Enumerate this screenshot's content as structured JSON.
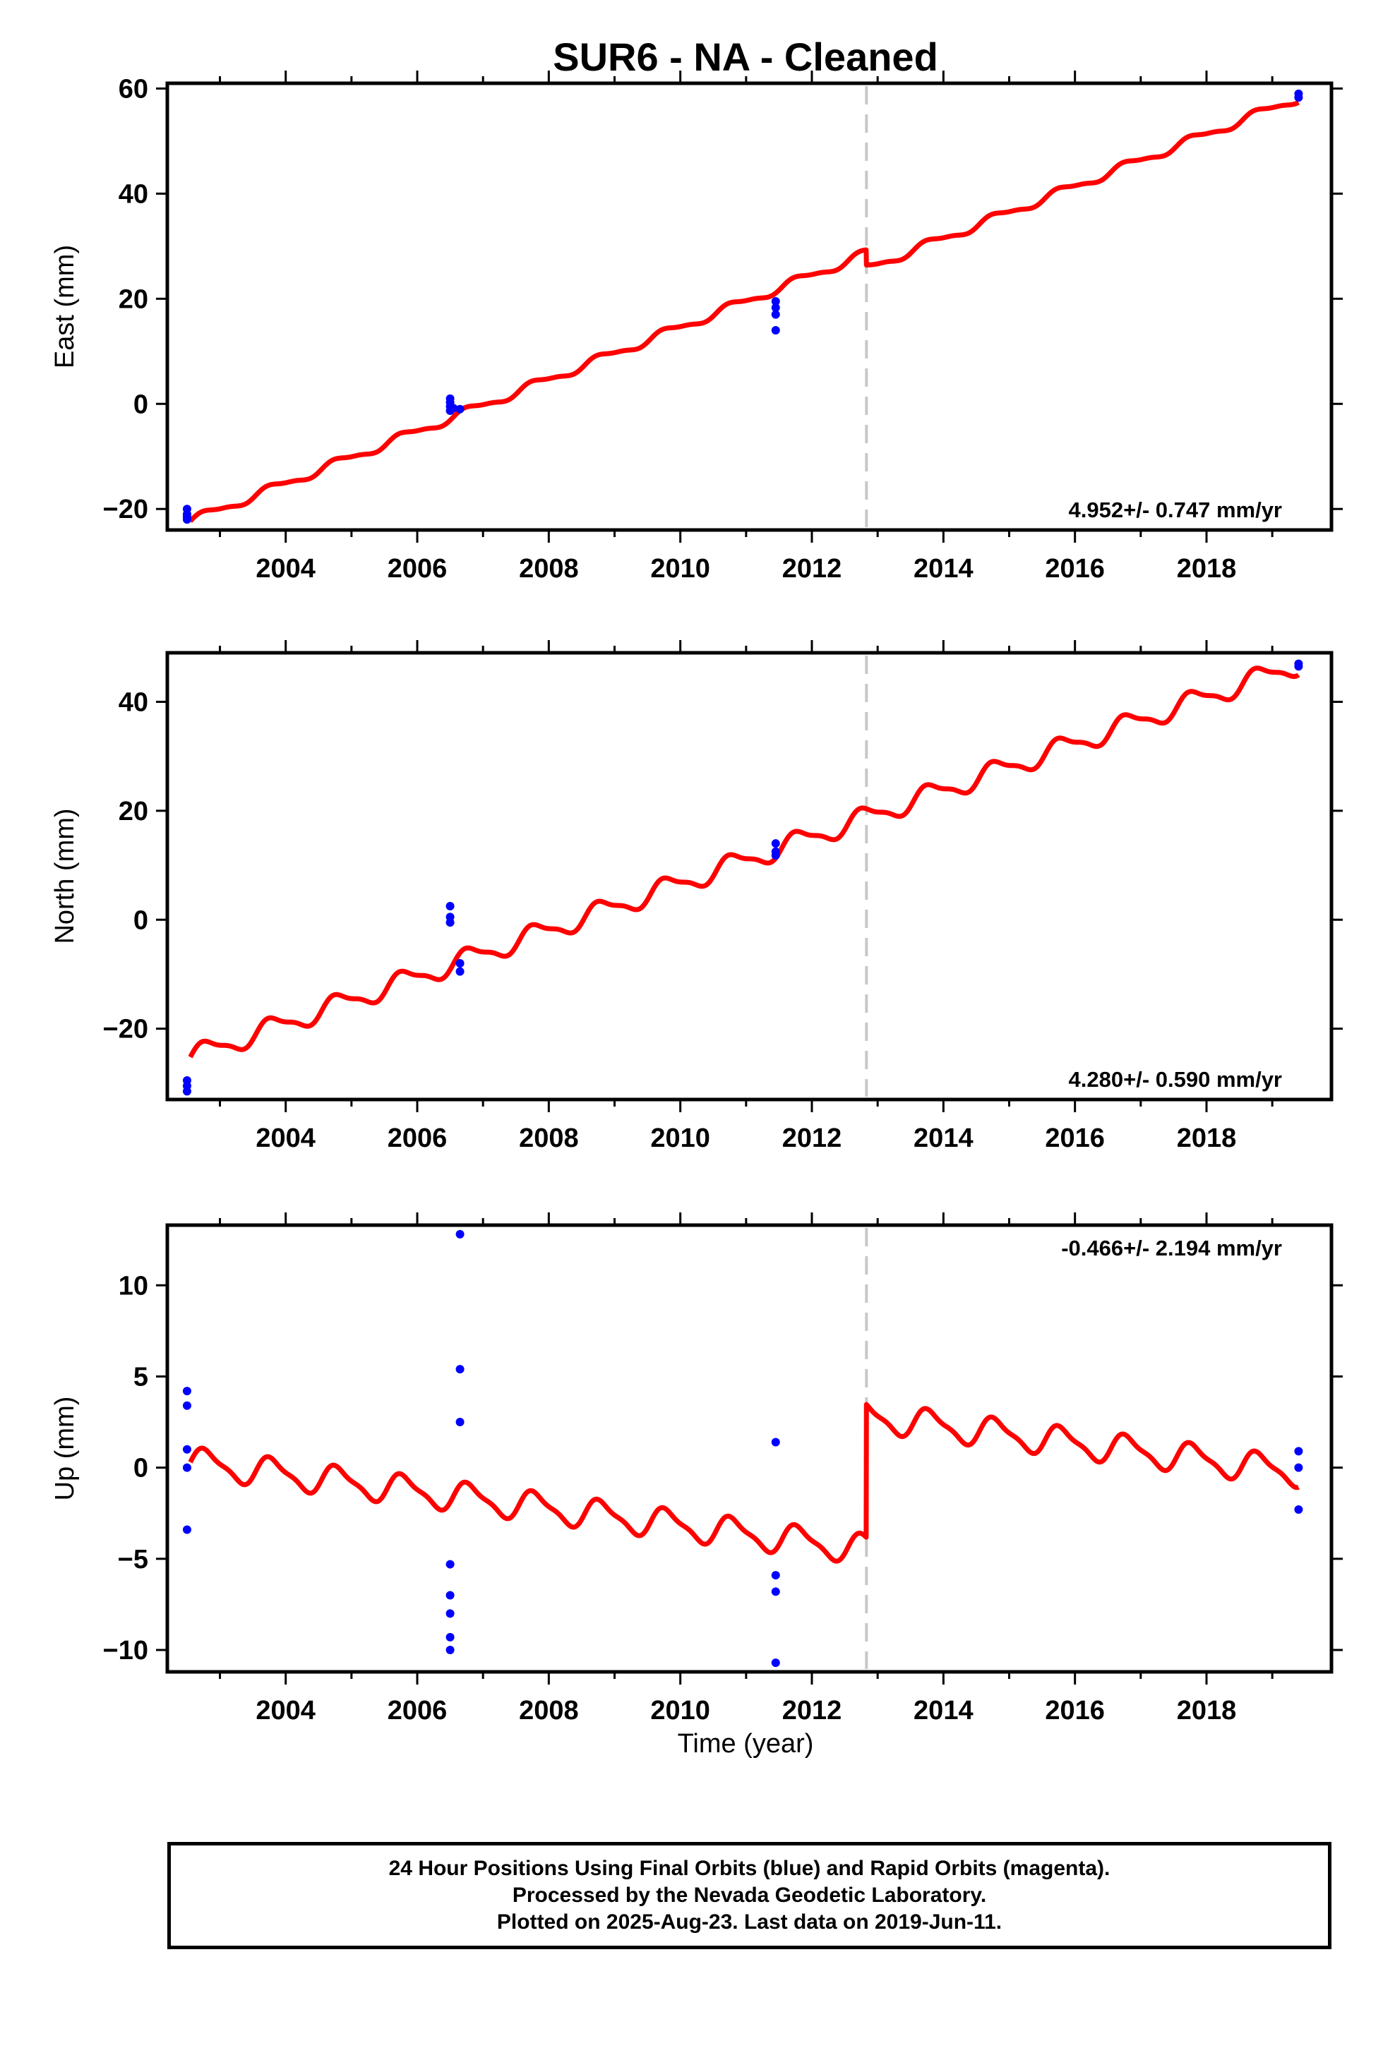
{
  "title": "SUR6  - NA - Cleaned",
  "colors": {
    "model_line": "#ff0000",
    "final_orbits": "#0000ff",
    "offset_marker": "#c8c8c8",
    "frame": "#000000"
  },
  "x_axis": {
    "label": "Time (year)",
    "range": [
      2002.2,
      2019.9
    ],
    "ticks": [
      "2004",
      "2006",
      "2008",
      "2010",
      "2012",
      "2014",
      "2016",
      "2018"
    ]
  },
  "offset_epoch": 2012.83,
  "chart_data": [
    {
      "type": "scatter",
      "component": "east",
      "ylabel": "East (mm)",
      "ylim": [
        -24,
        61
      ],
      "yticks": [
        "−20",
        "0",
        "20",
        "40",
        "60"
      ],
      "ytick_values": [
        -20,
        0,
        20,
        40,
        60
      ],
      "rate_label": "4.952+/- 0.747 mm/yr",
      "rate_position": "bottom-right",
      "model": {
        "start": 2002.55,
        "end": 2019.4,
        "intercept": -22.3,
        "slope": 4.952,
        "reference_year": 2002.55,
        "seasonal_amplitude": 0.8,
        "offset_step": -2.9
      },
      "points": [
        [
          2002.5,
          -20.0
        ],
        [
          2002.5,
          -21.0
        ],
        [
          2002.5,
          -22.0
        ],
        [
          2002.5,
          -21.5
        ],
        [
          2006.5,
          1.0
        ],
        [
          2006.5,
          0.3
        ],
        [
          2006.5,
          -0.5
        ],
        [
          2006.5,
          -1.3
        ],
        [
          2006.55,
          -0.8
        ],
        [
          2006.65,
          -1.0
        ],
        [
          2011.45,
          19.5
        ],
        [
          2011.45,
          18.3
        ],
        [
          2011.45,
          17.0
        ],
        [
          2011.45,
          14.0
        ],
        [
          2019.4,
          59.0
        ],
        [
          2019.4,
          58.3
        ]
      ]
    },
    {
      "type": "scatter",
      "component": "north",
      "ylabel": "North (mm)",
      "ylim": [
        -33,
        49
      ],
      "yticks": [
        "−20",
        "0",
        "20",
        "40"
      ],
      "ytick_values": [
        -20,
        0,
        20,
        40
      ],
      "rate_label": "4.280+/- 0.590 mm/yr",
      "rate_position": "bottom-right",
      "model": {
        "start": 2002.55,
        "end": 2019.4,
        "intercept": -25.2,
        "slope": 4.28,
        "reference_year": 2002.55,
        "seasonal_amplitude": 1.8,
        "offset_step": 0.0
      },
      "points": [
        [
          2002.5,
          -29.5
        ],
        [
          2002.5,
          -30.5
        ],
        [
          2002.5,
          -31.5
        ],
        [
          2006.5,
          2.5
        ],
        [
          2006.5,
          0.5
        ],
        [
          2006.5,
          -0.5
        ],
        [
          2006.65,
          -9.5
        ],
        [
          2006.65,
          -8.0
        ],
        [
          2011.45,
          14.0
        ],
        [
          2011.45,
          12.5
        ],
        [
          2011.45,
          11.8
        ],
        [
          2019.4,
          47.0
        ],
        [
          2019.4,
          46.5
        ]
      ]
    },
    {
      "type": "scatter",
      "component": "up",
      "ylabel": "Up (mm)",
      "ylim": [
        -11.2,
        13.3
      ],
      "yticks": [
        "−10",
        "−5",
        "0",
        "5",
        "10"
      ],
      "ytick_values": [
        -10,
        -5,
        0,
        5,
        10
      ],
      "rate_label": "-0.466+/- 2.194 mm/yr",
      "rate_position": "top-right",
      "model": {
        "start": 2002.55,
        "end": 2019.4,
        "intercept": 0.3,
        "slope": -0.466,
        "reference_year": 2002.55,
        "seasonal_amplitude": 0.75,
        "offset_step": 7.3
      },
      "points": [
        [
          2002.5,
          4.2
        ],
        [
          2002.5,
          3.4
        ],
        [
          2002.5,
          1.0
        ],
        [
          2002.5,
          0.0
        ],
        [
          2002.5,
          -3.4
        ],
        [
          2006.5,
          -5.3
        ],
        [
          2006.5,
          -7.0
        ],
        [
          2006.5,
          -8.0
        ],
        [
          2006.5,
          -9.3
        ],
        [
          2006.5,
          -10.0
        ],
        [
          2006.65,
          12.8
        ],
        [
          2006.65,
          5.4
        ],
        [
          2006.65,
          2.5
        ],
        [
          2011.45,
          1.4
        ],
        [
          2011.45,
          -5.9
        ],
        [
          2011.45,
          -6.8
        ],
        [
          2011.45,
          -10.7
        ],
        [
          2019.4,
          0.9
        ],
        [
          2019.4,
          0.0
        ],
        [
          2019.4,
          -2.3
        ]
      ]
    }
  ],
  "footer": {
    "line1": "24 Hour Positions Using Final Orbits (blue) and Rapid Orbits (magenta).",
    "line2": "Processed by the Nevada Geodetic Laboratory.",
    "line3": "Plotted on 2025-Aug-23. Last data on 2019-Jun-11."
  }
}
